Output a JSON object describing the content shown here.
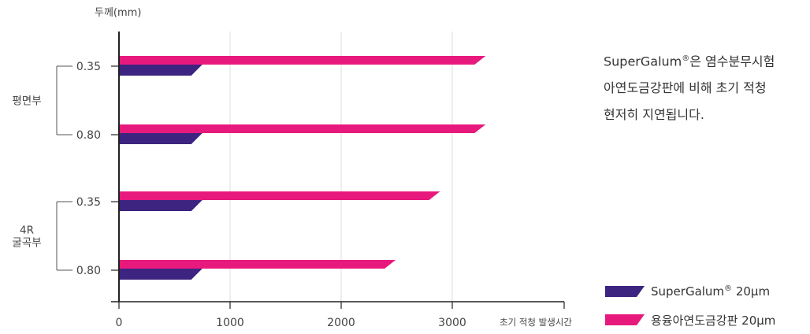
{
  "chart_data": {
    "type": "bar",
    "orientation": "horizontal",
    "y_axis_title": "두께(mm)",
    "x_axis_title": "초기 적청 발생시간",
    "xlim": [
      0,
      4000
    ],
    "x_ticks": [
      0,
      1000,
      2000,
      3000
    ],
    "grid": "vertical",
    "legend_position": "bottom-right",
    "groups": [
      {
        "label": "평면부",
        "categories": [
          "0.35",
          "0.80"
        ]
      },
      {
        "label": "4R 굴곡부",
        "label_lines": [
          "4R",
          "굴곡부"
        ],
        "categories": [
          "0.35",
          "0.80"
        ]
      }
    ],
    "categories": [
      "0.35",
      "0.80",
      "0.35",
      "0.80"
    ],
    "series": [
      {
        "name": "SuperGalum® 20μm",
        "name_main": "SuperGalum",
        "name_sup": "®",
        "name_tail": " 20μm",
        "color": "#3d2480",
        "values": [
          750,
          750,
          750,
          750
        ]
      },
      {
        "name": "용융아연도금강판 20μm",
        "color": "#e8197d",
        "values": [
          3300,
          3300,
          2890,
          2490
        ]
      }
    ]
  },
  "description": {
    "line1_main": "SuperGalum",
    "line1_sup": "®",
    "line1_tail": "은 염수분무시험",
    "line2": "아연도금강판에 비해 초기 적청",
    "line3": "현저히 지연됩니다."
  }
}
